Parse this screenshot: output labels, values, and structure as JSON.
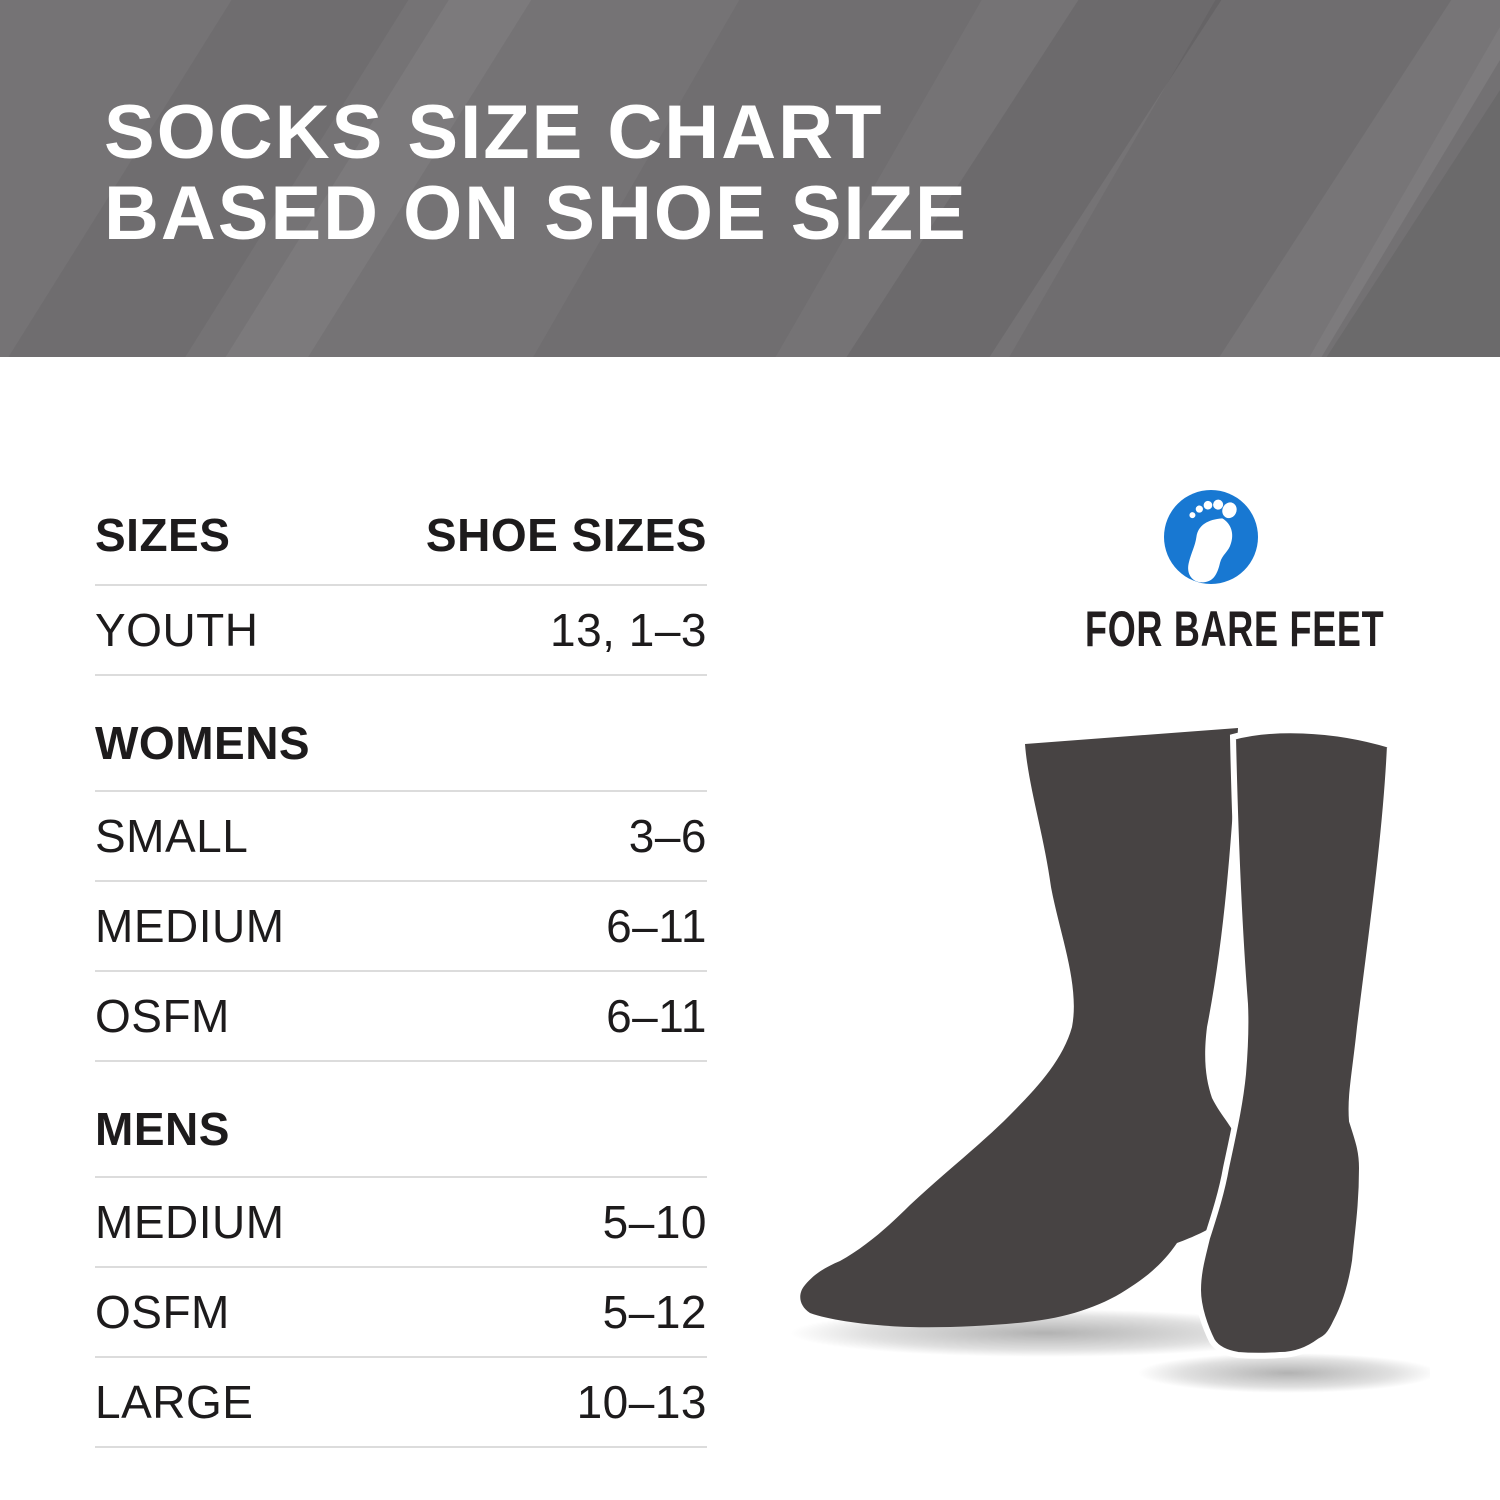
{
  "header": {
    "title_line1": "SOCKS SIZE CHART",
    "title_line2": "BASED ON SHOE SIZE",
    "background_color": "#757375",
    "text_color": "#ffffff"
  },
  "chart_data": {
    "type": "table",
    "title": "SOCKS SIZE CHART BASED ON SHOE SIZE",
    "columns": [
      "SIZES",
      "SHOE SIZES"
    ],
    "sections": [
      {
        "heading": "",
        "rows": [
          {
            "label": "YOUTH",
            "value": "13, 1–3"
          }
        ]
      },
      {
        "heading": "WOMENS",
        "rows": [
          {
            "label": "SMALL",
            "value": "3–6"
          },
          {
            "label": "MEDIUM",
            "value": "6–11"
          },
          {
            "label": "OSFM",
            "value": "6–11"
          }
        ]
      },
      {
        "heading": "MENS",
        "rows": [
          {
            "label": "MEDIUM",
            "value": "5–10"
          },
          {
            "label": "OSFM",
            "value": "5–12"
          },
          {
            "label": "LARGE",
            "value": "10–13"
          }
        ]
      }
    ]
  },
  "logo": {
    "brand": "FOR BARE FEET",
    "icon": "footprint-icon",
    "circle_color": "#1878d2",
    "foot_color": "#ffffff",
    "text_color": "#221e1f"
  },
  "illustration": {
    "name": "pair-of-socks",
    "sock_color": "#474343"
  }
}
